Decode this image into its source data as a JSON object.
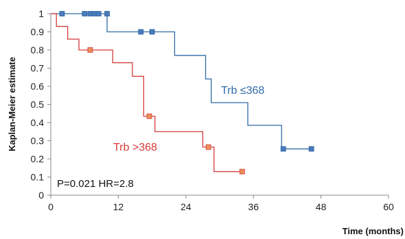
{
  "chart_data": {
    "type": "line",
    "xlabel": "Time (months)",
    "ylabel": "Kaplan-Meier estimate",
    "xlim": [
      0,
      60
    ],
    "ylim": [
      0,
      1
    ],
    "x_ticks": [
      "0",
      "12",
      "24",
      "36",
      "48",
      "60"
    ],
    "y_ticks": [
      "0",
      "0.1",
      "0.2",
      "0.3",
      "0.4",
      "0.5",
      "0.6",
      "0.7",
      "0.8",
      "0.9",
      "1"
    ],
    "grid": false,
    "series": [
      {
        "name": "Trb ≤368",
        "color": "#2e6aa8",
        "marker_color": "#4a7ab8",
        "steps": [
          [
            0,
            1
          ],
          [
            10,
            0.9
          ],
          [
            22,
            0.77
          ],
          [
            27.5,
            0.64
          ],
          [
            28.5,
            0.51
          ],
          [
            35,
            0.385
          ],
          [
            41,
            0.255
          ],
          [
            46.5,
            0.255
          ]
        ],
        "censored": [
          [
            2,
            1
          ],
          [
            6,
            1
          ],
          [
            7,
            1
          ],
          [
            7.7,
            1
          ],
          [
            8.5,
            1
          ],
          [
            10,
            1
          ],
          [
            16,
            0.9
          ],
          [
            18,
            0.9
          ],
          [
            41.3,
            0.255
          ],
          [
            46.3,
            0.255
          ]
        ]
      },
      {
        "name": "Trb >368",
        "color": "#d63a3a",
        "marker_color": "#e8905a",
        "steps": [
          [
            0,
            1
          ],
          [
            1,
            0.93
          ],
          [
            3,
            0.86
          ],
          [
            5,
            0.8
          ],
          [
            11,
            0.73
          ],
          [
            14.5,
            0.655
          ],
          [
            16.5,
            0.435
          ],
          [
            18.5,
            0.35
          ],
          [
            27,
            0.265
          ],
          [
            29,
            0.13
          ],
          [
            34,
            0.13
          ]
        ],
        "censored": [
          [
            7,
            0.8
          ],
          [
            17.5,
            0.435
          ],
          [
            28,
            0.265
          ],
          [
            34,
            0.13
          ]
        ]
      }
    ],
    "annotations": [
      {
        "text": "P=0.021 HR=2.8"
      }
    ]
  }
}
